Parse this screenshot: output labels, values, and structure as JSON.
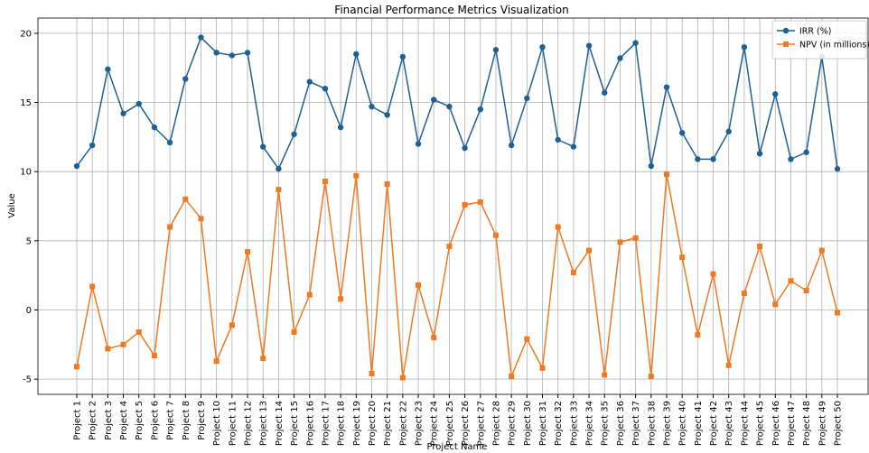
{
  "chart_data": {
    "type": "line",
    "title": "Financial Performance Metrics Visualization",
    "x_label": "Project Name",
    "y_label": "Value",
    "categories": [
      "Project 1",
      "Project 2",
      "Project 3",
      "Project 4",
      "Project 5",
      "Project 6",
      "Project 7",
      "Project 8",
      "Project 9",
      "Project 10",
      "Project 11",
      "Project 12",
      "Project 13",
      "Project 14",
      "Project 15",
      "Project 16",
      "Project 17",
      "Project 18",
      "Project 19",
      "Project 20",
      "Project 21",
      "Project 22",
      "Project 23",
      "Project 24",
      "Project 25",
      "Project 26",
      "Project 27",
      "Project 28",
      "Project 29",
      "Project 30",
      "Project 31",
      "Project 32",
      "Project 33",
      "Project 34",
      "Project 35",
      "Project 36",
      "Project 37",
      "Project 38",
      "Project 39",
      "Project 40",
      "Project 41",
      "Project 42",
      "Project 43",
      "Project 44",
      "Project 45",
      "Project 46",
      "Project 47",
      "Project 48",
      "Project 49",
      "Project 50"
    ],
    "series": [
      {
        "name": "IRR (%)",
        "color": "#1f5f94",
        "marker": "circle",
        "values": [
          10.4,
          11.9,
          17.4,
          14.2,
          14.9,
          13.2,
          12.1,
          16.7,
          19.7,
          18.6,
          18.4,
          18.6,
          11.8,
          10.2,
          12.7,
          16.5,
          16.0,
          13.2,
          18.5,
          14.7,
          14.1,
          18.3,
          12.0,
          15.2,
          14.7,
          11.7,
          14.5,
          18.8,
          11.9,
          15.3,
          19.0,
          12.3,
          11.8,
          19.1,
          15.7,
          18.2,
          19.3,
          10.4,
          16.1,
          12.8,
          10.9,
          10.9,
          12.9,
          19.0,
          11.3,
          15.6,
          10.9,
          11.4,
          18.3,
          10.2
        ]
      },
      {
        "name": "NPV (in millions)",
        "color": "#ef7a22",
        "marker": "square",
        "values": [
          -4.1,
          1.7,
          -2.8,
          -2.5,
          -1.6,
          -3.3,
          6.0,
          8.0,
          6.6,
          -3.7,
          -1.1,
          4.2,
          -3.5,
          8.7,
          -1.6,
          1.1,
          9.3,
          0.8,
          9.7,
          -4.6,
          9.1,
          -4.9,
          1.8,
          -2.0,
          4.6,
          7.6,
          7.8,
          5.4,
          -4.8,
          -2.1,
          -4.2,
          6.0,
          2.7,
          4.3,
          -4.7,
          4.9,
          5.2,
          -4.8,
          9.8,
          3.8,
          -1.8,
          2.6,
          -4.0,
          1.2,
          4.6,
          0.4,
          2.1,
          1.4,
          4.3,
          -0.2
        ]
      }
    ],
    "ylim": [
      -6.1,
      21.1
    ],
    "yticks": [
      -5,
      0,
      5,
      10,
      15,
      20
    ],
    "grid": true,
    "legend": "upper right"
  }
}
